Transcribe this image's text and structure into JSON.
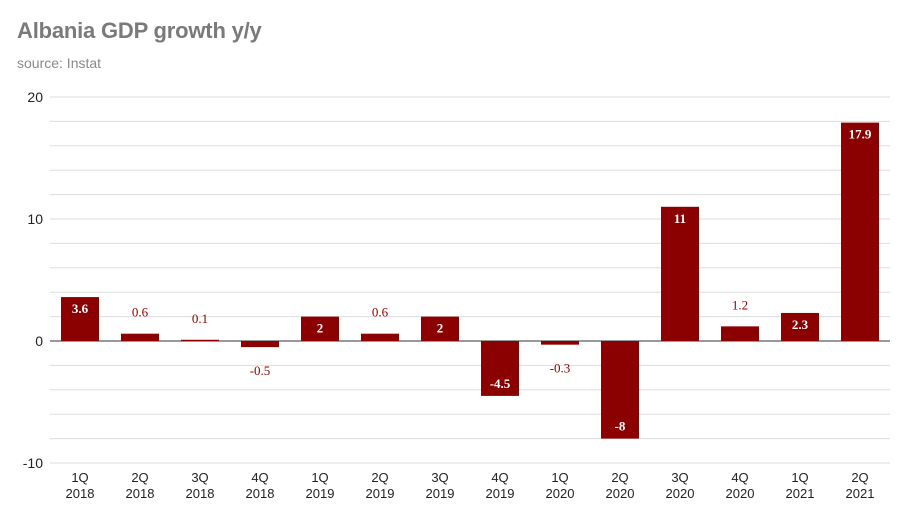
{
  "chart_data": {
    "type": "bar",
    "title": "Albania GDP growth y/y",
    "subtitle": "source: Instat",
    "xlabel": "",
    "ylabel": "",
    "ylim": [
      -10,
      20
    ],
    "yticks": [
      "20",
      "10",
      "0",
      "-10"
    ],
    "categories": [
      [
        "1Q",
        "2018"
      ],
      [
        "2Q",
        "2018"
      ],
      [
        "3Q",
        "2018"
      ],
      [
        "4Q",
        "2018"
      ],
      [
        "1Q",
        "2019"
      ],
      [
        "2Q",
        "2019"
      ],
      [
        "3Q",
        "2019"
      ],
      [
        "4Q",
        "2019"
      ],
      [
        "1Q",
        "2020"
      ],
      [
        "2Q",
        "2020"
      ],
      [
        "3Q",
        "2020"
      ],
      [
        "4Q",
        "2020"
      ],
      [
        "1Q",
        "2021"
      ],
      [
        "2Q",
        "2021"
      ]
    ],
    "values": [
      3.6,
      0.6,
      0.1,
      -0.5,
      2,
      0.6,
      2,
      -4.5,
      -0.3,
      -8,
      11,
      1.2,
      2.3,
      17.9
    ],
    "labels": [
      "3.6",
      "0.6",
      "0.1",
      "-0.5",
      "2",
      "0.6",
      "2",
      "-4.5",
      "-0.3",
      "-8",
      "11",
      "1.2",
      "2.3",
      "17.9"
    ],
    "colors": {
      "bar": "#8b0000",
      "label_inside": "#ffffff",
      "label_outside": "#8b0000",
      "grid": "#dddddd",
      "axis": "#333333"
    },
    "grid": true
  }
}
